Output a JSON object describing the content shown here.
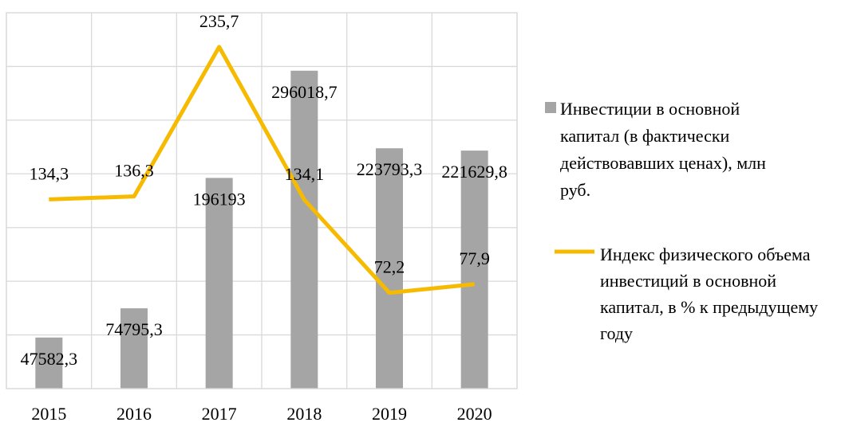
{
  "chart_data": {
    "type": "bar-line",
    "categories": [
      "2015",
      "2016",
      "2017",
      "2018",
      "2019",
      "2020"
    ],
    "series": [
      {
        "name": "Инвестиции в основной капитал (в фактически действовавших ценах), млн руб.",
        "type": "bar",
        "color": "#a5a5a5",
        "values": [
          47582.3,
          74795.3,
          196193,
          296018.7,
          223793.3,
          221629.8
        ],
        "value_labels": [
          "47582,3",
          "74795,3",
          "196193",
          "296018,7",
          "223793,3",
          "221629,8"
        ]
      },
      {
        "name": "Индекс физического объема инвестиций в основной капитал, в % к предыдущему году",
        "type": "line",
        "axis": "y2",
        "color": "#f6bb00",
        "values": [
          134.3,
          136.3,
          235.7,
          134.1,
          72.2,
          77.9
        ],
        "value_labels": [
          "134,3",
          "136,3",
          "235,7",
          "134,1",
          "72,2",
          "77,9"
        ]
      }
    ],
    "ylim": [
      0,
      350000
    ],
    "yticks": [
      0,
      50000,
      100000,
      150000,
      200000,
      250000,
      300000,
      350000
    ],
    "y2lim": [
      8.5,
      258.4
    ],
    "grid": true,
    "tick_labels": false,
    "legend": "right"
  }
}
